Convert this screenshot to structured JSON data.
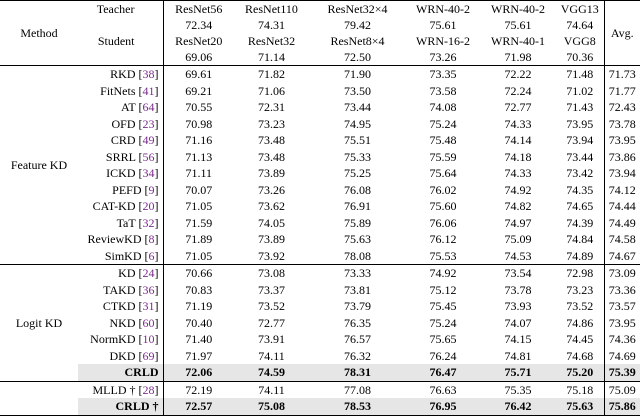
{
  "header": {
    "method": "Method",
    "teacher_label": "Teacher",
    "student_label": "Student",
    "avg": "Avg.",
    "teachers": [
      {
        "name": "ResNet56",
        "acc": "72.34"
      },
      {
        "name": "ResNet110",
        "acc": "74.31"
      },
      {
        "name": "ResNet32×4",
        "acc": "79.42"
      },
      {
        "name": "WRN-40-2",
        "acc": "75.61"
      },
      {
        "name": "WRN-40-2",
        "acc": "75.61"
      },
      {
        "name": "VGG13",
        "acc": "74.64"
      }
    ],
    "students": [
      {
        "name": "ResNet20",
        "acc": "69.06"
      },
      {
        "name": "ResNet32",
        "acc": "71.14"
      },
      {
        "name": "ResNet8×4",
        "acc": "72.50"
      },
      {
        "name": "WRN-16-2",
        "acc": "73.26"
      },
      {
        "name": "WRN-40-1",
        "acc": "71.98"
      },
      {
        "name": "VGG8",
        "acc": "70.36"
      }
    ]
  },
  "groups": [
    {
      "label": "Feature KD",
      "rows": [
        {
          "name": "RKD",
          "ref": "38",
          "vals": [
            "69.61",
            "71.82",
            "71.90",
            "73.35",
            "72.22",
            "71.48",
            "71.73"
          ]
        },
        {
          "name": "FitNets",
          "ref": "41",
          "vals": [
            "69.21",
            "71.06",
            "73.50",
            "73.58",
            "72.24",
            "71.02",
            "71.77"
          ]
        },
        {
          "name": "AT",
          "ref": "64",
          "vals": [
            "70.55",
            "72.31",
            "73.44",
            "74.08",
            "72.77",
            "71.43",
            "72.43"
          ]
        },
        {
          "name": "OFD",
          "ref": "23",
          "vals": [
            "70.98",
            "73.23",
            "74.95",
            "75.24",
            "74.33",
            "73.95",
            "73.78"
          ]
        },
        {
          "name": "CRD",
          "ref": "49",
          "vals": [
            "71.16",
            "73.48",
            "75.51",
            "75.48",
            "74.14",
            "73.94",
            "73.95"
          ]
        },
        {
          "name": "SRRL",
          "ref": "56",
          "vals": [
            "71.13",
            "73.48",
            "75.33",
            "75.59",
            "74.18",
            "73.44",
            "73.86"
          ]
        },
        {
          "name": "ICKD",
          "ref": "34",
          "vals": [
            "71.11",
            "73.89",
            "75.25",
            "75.64",
            "74.33",
            "73.42",
            "73.94"
          ]
        },
        {
          "name": "PEFD",
          "ref": "9",
          "vals": [
            "70.07",
            "73.26",
            "76.08",
            "76.02",
            "74.92",
            "74.35",
            "74.12"
          ]
        },
        {
          "name": "CAT-KD",
          "ref": "20",
          "vals": [
            "71.05",
            "73.62",
            "76.91",
            "75.60",
            "74.82",
            "74.65",
            "74.44"
          ]
        },
        {
          "name": "TaT",
          "ref": "32",
          "vals": [
            "71.59",
            "74.05",
            "75.89",
            "76.06",
            "74.97",
            "74.39",
            "74.49"
          ]
        },
        {
          "name": "ReviewKD",
          "ref": "8",
          "vals": [
            "71.89",
            "73.89",
            "75.63",
            "76.12",
            "75.09",
            "74.84",
            "74.58"
          ]
        },
        {
          "name": "SimKD",
          "ref": "6",
          "vals": [
            "71.05",
            "73.92",
            "78.08",
            "75.53",
            "74.53",
            "74.89",
            "74.67"
          ]
        }
      ]
    },
    {
      "label": "Logit KD",
      "rows": [
        {
          "name": "KD",
          "ref": "24",
          "vals": [
            "70.66",
            "73.08",
            "73.33",
            "74.92",
            "73.54",
            "72.98",
            "73.09"
          ]
        },
        {
          "name": "TAKD",
          "ref": "36",
          "vals": [
            "70.83",
            "73.37",
            "73.81",
            "75.12",
            "73.78",
            "73.23",
            "73.36"
          ]
        },
        {
          "name": "CTKD",
          "ref": "31",
          "vals": [
            "71.19",
            "73.52",
            "73.79",
            "75.45",
            "73.93",
            "73.52",
            "73.57"
          ]
        },
        {
          "name": "NKD",
          "ref": "60",
          "vals": [
            "70.40",
            "72.77",
            "76.35",
            "75.24",
            "74.07",
            "74.86",
            "73.95"
          ]
        },
        {
          "name": "NormKD",
          "ref": "10",
          "vals": [
            "71.40",
            "73.91",
            "76.57",
            "75.65",
            "74.15",
            "74.45",
            "74.36"
          ]
        },
        {
          "name": "DKD",
          "ref": "69",
          "vals": [
            "71.97",
            "74.11",
            "76.32",
            "76.24",
            "74.81",
            "74.68",
            "74.69"
          ]
        }
      ]
    }
  ],
  "crld": {
    "name": "CRLD",
    "vals": [
      "72.06",
      "74.59",
      "78.31",
      "76.47",
      "75.71",
      "75.20",
      "75.39"
    ]
  },
  "mlld": {
    "name": "MLLD",
    "mark": "†",
    "ref": "28",
    "vals": [
      "72.19",
      "74.11",
      "77.08",
      "76.63",
      "75.35",
      "75.18",
      "75.09"
    ]
  },
  "crld_dagger": {
    "name": "CRLD",
    "mark": "†",
    "vals": [
      "72.57",
      "75.08",
      "78.53",
      "76.95",
      "76.42",
      "75.63",
      "75.86"
    ]
  }
}
